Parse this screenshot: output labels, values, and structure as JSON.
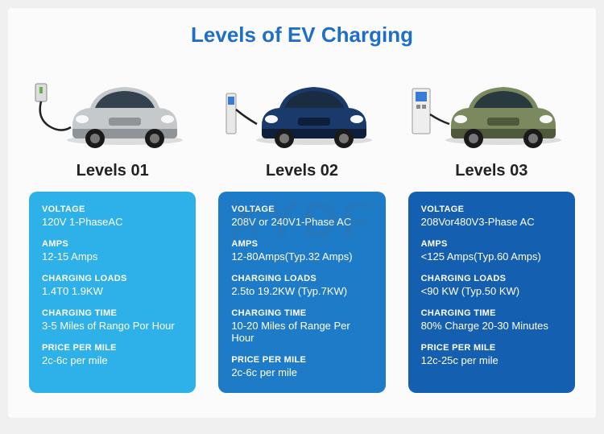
{
  "title": "Levels of EV Charging",
  "title_color": "#1f6fc8",
  "background_color": "#fbfbfb",
  "watermark": "XYDF",
  "spec_keys": [
    {
      "key": "voltage",
      "label": "VOLTAGE"
    },
    {
      "key": "amps",
      "label": "AMPS"
    },
    {
      "key": "charging_loads",
      "label": "CHARGING LOADS"
    },
    {
      "key": "charging_time",
      "label": "CHARGING TIME"
    },
    {
      "key": "price_per_mile",
      "label": "PRICE PER MILE"
    }
  ],
  "levels": [
    {
      "label": "Levels 01",
      "card_color": "#2eb0e8",
      "car_body_color": "#c5c9cc",
      "car_shadow_color": "#8f9498",
      "charger_type": "wall",
      "specs": {
        "voltage": "120V 1-PhaseAC",
        "amps": "12-15 Amps",
        "charging_loads": "1.4T0 1.9KW",
        "charging_time": "3-5 Miles of Rango Por Hour",
        "price_per_mile": "2c-6c per mile"
      }
    },
    {
      "label": "Levels 02",
      "card_color": "#1e7bc8",
      "car_body_color": "#1a3a6b",
      "car_shadow_color": "#0d1f3a",
      "charger_type": "pedestal",
      "specs": {
        "voltage": "208V or 240V1-Phase AC",
        "amps": "12-80Amps(Typ.32 Amps)",
        "charging_loads": "2.5to 19.2KW (Typ.7KW)",
        "charging_time": "10-20 Miles of Range Per Hour",
        "price_per_mile": "2c-6c per mile"
      }
    },
    {
      "label": "Levels 03",
      "card_color": "#155fb0",
      "car_body_color": "#7a8a5e",
      "car_shadow_color": "#4f5a3c",
      "charger_type": "fast",
      "specs": {
        "voltage": "208Vor480V3-Phase AC",
        "amps": "<125 Amps(Typ.60 Amps)",
        "charging_loads": "<90 KW (Typ.50 KW)",
        "charging_time": "80% Charge 20-30 Minutes",
        "price_per_mile": "12c-25c per mile"
      }
    }
  ]
}
